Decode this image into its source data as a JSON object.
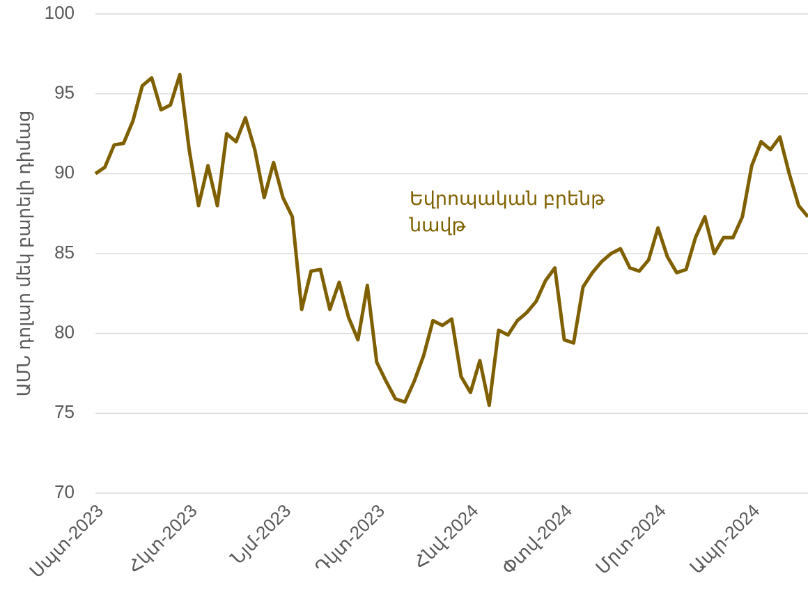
{
  "chart_data": {
    "type": "line",
    "y_label": "ԱՄՆ դոլար մեկ բարելի դիմաց",
    "categories": [
      "Սպտ-2023",
      null,
      null,
      null,
      null,
      null,
      null,
      null,
      null,
      null,
      "Հկտ-2023",
      null,
      null,
      null,
      null,
      null,
      null,
      null,
      null,
      null,
      "Նյմ-2023",
      null,
      null,
      null,
      null,
      null,
      null,
      null,
      null,
      null,
      "Դկտ-2023",
      null,
      null,
      null,
      null,
      null,
      null,
      null,
      null,
      null,
      "Հնվ-2024",
      null,
      null,
      null,
      null,
      null,
      null,
      null,
      null,
      null,
      "Փտվ-2024",
      null,
      null,
      null,
      null,
      null,
      null,
      null,
      null,
      null,
      "Մրտ-2024",
      null,
      null,
      null,
      null,
      null,
      null,
      null,
      null,
      null,
      "Ապր-2024",
      null,
      null,
      null,
      null,
      null,
      null
    ],
    "series": [
      {
        "name": "Եվրոպական բրենթ նավթ",
        "color": "#7f6000",
        "values": [
          90.0,
          90.4,
          91.8,
          91.9,
          93.3,
          95.5,
          96.0,
          94.0,
          94.3,
          96.2,
          91.5,
          88.0,
          90.5,
          88.0,
          92.5,
          92.0,
          93.5,
          91.5,
          88.5,
          90.7,
          88.5,
          87.3,
          81.5,
          83.9,
          84.0,
          81.5,
          83.2,
          81.0,
          79.6,
          83.0,
          78.2,
          77.0,
          75.9,
          75.7,
          77.0,
          78.6,
          80.8,
          80.5,
          80.9,
          77.3,
          76.3,
          78.3,
          75.5,
          80.2,
          79.9,
          80.8,
          81.3,
          82.0,
          83.3,
          84.1,
          79.6,
          79.4,
          82.9,
          83.8,
          84.5,
          85.0,
          85.3,
          84.1,
          83.9,
          84.6,
          86.6,
          84.8,
          83.8,
          84.0,
          86.0,
          87.3,
          85.0,
          86.0,
          86.0,
          87.3,
          90.5,
          92.0,
          91.5,
          92.3,
          90.0,
          88.0,
          87.3
        ]
      }
    ],
    "ylim": [
      70,
      100
    ],
    "yticks": [
      70,
      75,
      80,
      85,
      90,
      95,
      100
    ],
    "grid": true
  }
}
